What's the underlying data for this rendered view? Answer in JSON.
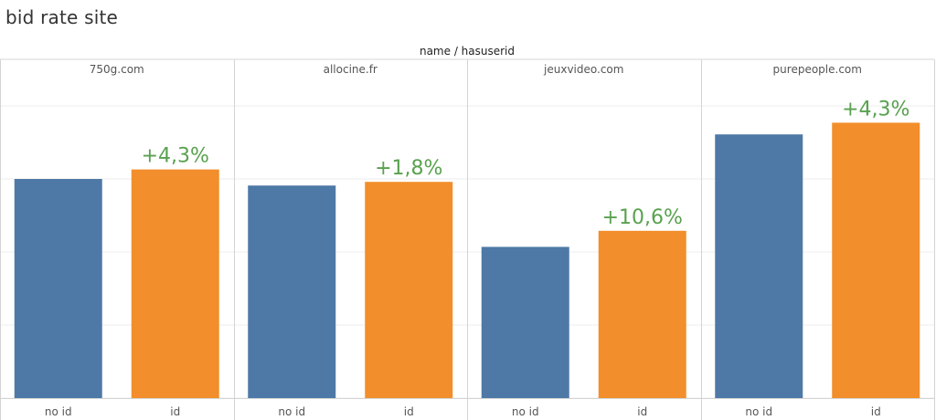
{
  "title": "bid rate site",
  "chart_data": {
    "type": "bar",
    "title": "bid rate site",
    "column_header": "name / hasuserid",
    "panels": [
      "750g.com",
      "allocine.fr",
      "jeuxvideo.com",
      "purepeople.com"
    ],
    "categories": [
      "no id",
      "id"
    ],
    "values": [
      [
        30.0,
        31.3
      ],
      [
        29.1,
        29.6
      ],
      [
        20.7,
        22.9
      ],
      [
        36.1,
        37.7
      ]
    ],
    "annotations": [
      "+4,3%",
      "+1,8%",
      "+10,6%",
      "+4,3%"
    ],
    "colors": {
      "no id": "#4e79a7",
      "id": "#f28e2b",
      "annotation": "#59a14f"
    },
    "ylim": [
      0,
      45
    ],
    "gridlines": [
      0,
      10,
      20,
      30,
      40
    ],
    "grid": true
  }
}
